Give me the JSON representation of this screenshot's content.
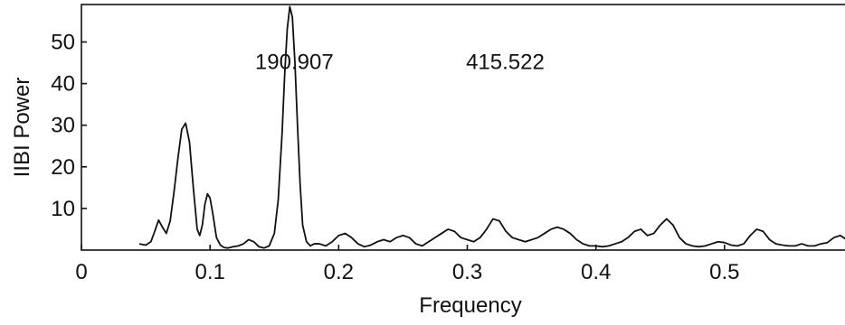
{
  "chart_data": {
    "type": "line",
    "title": "",
    "xlabel": "Frequency",
    "ylabel": "IIBI Power",
    "xlim": [
      0,
      0.6
    ],
    "ylim": [
      0,
      59
    ],
    "x_ticks": [
      {
        "value": 0,
        "label": "0"
      },
      {
        "value": 0.1,
        "label": "0.1"
      },
      {
        "value": 0.2,
        "label": "0.2"
      },
      {
        "value": 0.3,
        "label": "0.3"
      },
      {
        "value": 0.4,
        "label": "0.4"
      },
      {
        "value": 0.5,
        "label": "0.5"
      }
    ],
    "y_ticks": [
      {
        "value": 10,
        "label": "10"
      },
      {
        "value": 20,
        "label": "20"
      },
      {
        "value": 30,
        "label": "30"
      },
      {
        "value": 40,
        "label": "40"
      },
      {
        "value": 50,
        "label": "50"
      }
    ],
    "annotations": [
      {
        "text": "190.907",
        "x": 0.135,
        "y": 43.5
      },
      {
        "text": "415.522",
        "x": 0.299,
        "y": 43.5
      }
    ],
    "grid": false,
    "series": [
      {
        "x": [
          0.045,
          0.05,
          0.054,
          0.057,
          0.06,
          0.063,
          0.066,
          0.069,
          0.072,
          0.075,
          0.078,
          0.081,
          0.084,
          0.087,
          0.09,
          0.092,
          0.094,
          0.096,
          0.098,
          0.1,
          0.102,
          0.105,
          0.108,
          0.111,
          0.114,
          0.118,
          0.122,
          0.126,
          0.13,
          0.134,
          0.138,
          0.142,
          0.146,
          0.15,
          0.153,
          0.156,
          0.158,
          0.16,
          0.162,
          0.164,
          0.166,
          0.168,
          0.17,
          0.172,
          0.175,
          0.178,
          0.181,
          0.185,
          0.19,
          0.195,
          0.2,
          0.205,
          0.21,
          0.215,
          0.22,
          0.225,
          0.23,
          0.235,
          0.24,
          0.245,
          0.25,
          0.255,
          0.26,
          0.265,
          0.27,
          0.275,
          0.28,
          0.285,
          0.29,
          0.295,
          0.3,
          0.305,
          0.31,
          0.315,
          0.32,
          0.325,
          0.33,
          0.335,
          0.34,
          0.345,
          0.35,
          0.355,
          0.36,
          0.365,
          0.37,
          0.375,
          0.38,
          0.385,
          0.39,
          0.395,
          0.4,
          0.405,
          0.41,
          0.415,
          0.42,
          0.425,
          0.43,
          0.435,
          0.44,
          0.445,
          0.45,
          0.455,
          0.46,
          0.465,
          0.47,
          0.475,
          0.48,
          0.485,
          0.49,
          0.495,
          0.5,
          0.505,
          0.51,
          0.515,
          0.52,
          0.525,
          0.53,
          0.535,
          0.54,
          0.545,
          0.55,
          0.555,
          0.56,
          0.565,
          0.57,
          0.575,
          0.58,
          0.585,
          0.59,
          0.595,
          0.6
        ],
        "y": [
          1.5,
          1.2,
          2,
          4.5,
          7.2,
          5.5,
          4,
          7,
          14,
          22,
          29,
          30.5,
          26,
          15,
          5,
          3.5,
          6,
          11,
          13.5,
          12.5,
          9,
          3,
          1.2,
          0.6,
          0.5,
          0.8,
          1,
          1.5,
          2.5,
          2,
          0.8,
          0.5,
          1,
          4,
          12,
          28,
          42,
          53,
          58.5,
          56,
          45,
          30,
          16,
          6,
          2,
          1,
          1.5,
          1.5,
          1,
          2,
          3.5,
          4,
          3,
          1.5,
          0.8,
          1.2,
          2,
          2.5,
          2,
          3,
          3.5,
          3,
          1.5,
          1,
          2,
          3,
          4,
          5,
          4.5,
          3,
          2.5,
          2,
          3,
          5,
          7.5,
          7,
          4.5,
          3,
          2.5,
          2,
          2.5,
          3,
          4,
          5,
          5.5,
          5,
          4,
          2.5,
          1.5,
          1,
          1,
          0.8,
          1,
          1.5,
          2,
          3,
          4.5,
          5,
          3.5,
          4,
          6,
          7.5,
          6,
          3,
          1.5,
          1,
          0.8,
          1,
          1.5,
          2,
          1.8,
          1.2,
          1,
          1.5,
          3.5,
          5,
          4.5,
          2.5,
          1.5,
          1.2,
          1,
          1,
          1.5,
          1,
          1,
          1.5,
          1.8,
          3,
          3.5,
          2.5,
          3
        ]
      }
    ]
  }
}
